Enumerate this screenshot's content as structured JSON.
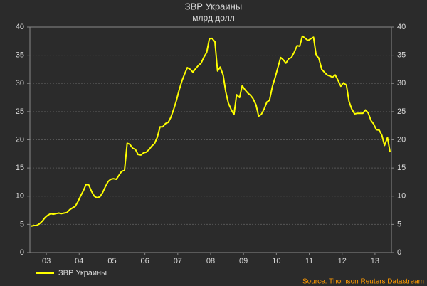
{
  "chart_data": {
    "type": "line",
    "title": "ЗВР Украины",
    "subtitle": "млрд долл",
    "source": "Source: Thomson Reuters Datastream",
    "xlim": [
      2003,
      2014
    ],
    "xticks": [
      {
        "value": 2003.5,
        "label": "03"
      },
      {
        "value": 2004.5,
        "label": "04"
      },
      {
        "value": 2005.5,
        "label": "05"
      },
      {
        "value": 2006.5,
        "label": "06"
      },
      {
        "value": 2007.5,
        "label": "07"
      },
      {
        "value": 2008.5,
        "label": "08"
      },
      {
        "value": 2009.5,
        "label": "09"
      },
      {
        "value": 2010.5,
        "label": "10"
      },
      {
        "value": 2011.5,
        "label": "11"
      },
      {
        "value": 2012.5,
        "label": "12"
      },
      {
        "value": 2013.5,
        "label": "13"
      }
    ],
    "ylim": [
      0,
      40
    ],
    "yticks": [
      0,
      5,
      10,
      15,
      20,
      25,
      30,
      35,
      40
    ],
    "grid": true,
    "legend": "bottom-left",
    "x": [
      2003.04,
      2003.13,
      2003.21,
      2003.29,
      2003.38,
      2003.46,
      2003.54,
      2003.63,
      2003.71,
      2003.79,
      2003.88,
      2003.96,
      2004.04,
      2004.13,
      2004.21,
      2004.29,
      2004.38,
      2004.46,
      2004.54,
      2004.63,
      2004.71,
      2004.79,
      2004.88,
      2004.96,
      2005.04,
      2005.13,
      2005.21,
      2005.29,
      2005.38,
      2005.46,
      2005.54,
      2005.63,
      2005.71,
      2005.79,
      2005.88,
      2005.96,
      2006.04,
      2006.13,
      2006.21,
      2006.29,
      2006.38,
      2006.46,
      2006.54,
      2006.63,
      2006.71,
      2006.79,
      2006.88,
      2006.96,
      2007.04,
      2007.13,
      2007.21,
      2007.29,
      2007.38,
      2007.46,
      2007.54,
      2007.63,
      2007.71,
      2007.79,
      2007.88,
      2007.96,
      2008.04,
      2008.13,
      2008.21,
      2008.29,
      2008.38,
      2008.46,
      2008.54,
      2008.63,
      2008.71,
      2008.79,
      2008.88,
      2008.96,
      2009.04,
      2009.13,
      2009.21,
      2009.29,
      2009.38,
      2009.46,
      2009.54,
      2009.63,
      2009.71,
      2009.79,
      2009.88,
      2009.96,
      2010.04,
      2010.13,
      2010.21,
      2010.29,
      2010.38,
      2010.46,
      2010.54,
      2010.63,
      2010.71,
      2010.79,
      2010.88,
      2010.96,
      2011.04,
      2011.13,
      2011.21,
      2011.29,
      2011.38,
      2011.46,
      2011.54,
      2011.63,
      2011.71,
      2011.79,
      2011.88,
      2011.96,
      2012.04,
      2012.13,
      2012.21,
      2012.29,
      2012.38,
      2012.46,
      2012.54,
      2012.63,
      2012.71,
      2012.79,
      2012.88,
      2012.96,
      2013.04,
      2013.13,
      2013.21,
      2013.29,
      2013.38,
      2013.46,
      2013.54,
      2013.63,
      2013.71,
      2013.79,
      2013.88,
      2013.96
    ],
    "series": [
      {
        "name": "ЗВР Украины",
        "color": "#ffff00",
        "values": [
          4.7,
          4.8,
          4.8,
          5.1,
          5.6,
          6.2,
          6.6,
          6.9,
          6.8,
          6.9,
          7.0,
          6.9,
          7.0,
          7.1,
          7.6,
          7.9,
          8.2,
          9.0,
          10.0,
          11.0,
          12.1,
          12.0,
          10.8,
          10.0,
          9.7,
          9.9,
          10.6,
          11.6,
          12.6,
          13.0,
          13.1,
          13.0,
          13.7,
          14.4,
          14.6,
          19.4,
          19.2,
          18.5,
          18.3,
          17.4,
          17.3,
          17.7,
          17.8,
          18.3,
          18.9,
          19.3,
          20.5,
          22.3,
          22.3,
          22.9,
          23.1,
          24.0,
          25.5,
          27.0,
          28.8,
          30.5,
          31.7,
          32.8,
          32.5,
          32.0,
          32.6,
          33.2,
          33.6,
          34.6,
          35.5,
          37.9,
          38.0,
          37.4,
          32.2,
          32.9,
          31.5,
          28.5,
          26.5,
          25.3,
          24.5,
          28.0,
          27.5,
          29.6,
          28.9,
          28.3,
          27.9,
          27.3,
          26.2,
          24.2,
          24.5,
          25.5,
          26.7,
          27.0,
          29.5,
          31.0,
          32.7,
          34.6,
          34.2,
          33.6,
          34.4,
          34.6,
          35.5,
          36.7,
          36.6,
          38.4,
          38.0,
          37.6,
          37.9,
          38.2,
          35.0,
          34.5,
          32.5,
          32.0,
          31.5,
          31.3,
          31.1,
          31.5,
          30.5,
          29.5,
          30.1,
          29.7,
          26.8,
          25.5,
          24.6,
          24.7,
          24.7,
          24.7,
          25.3,
          24.8,
          23.4,
          22.8,
          21.8,
          21.7,
          20.8,
          19.0,
          20.4,
          17.8
        ]
      }
    ]
  }
}
